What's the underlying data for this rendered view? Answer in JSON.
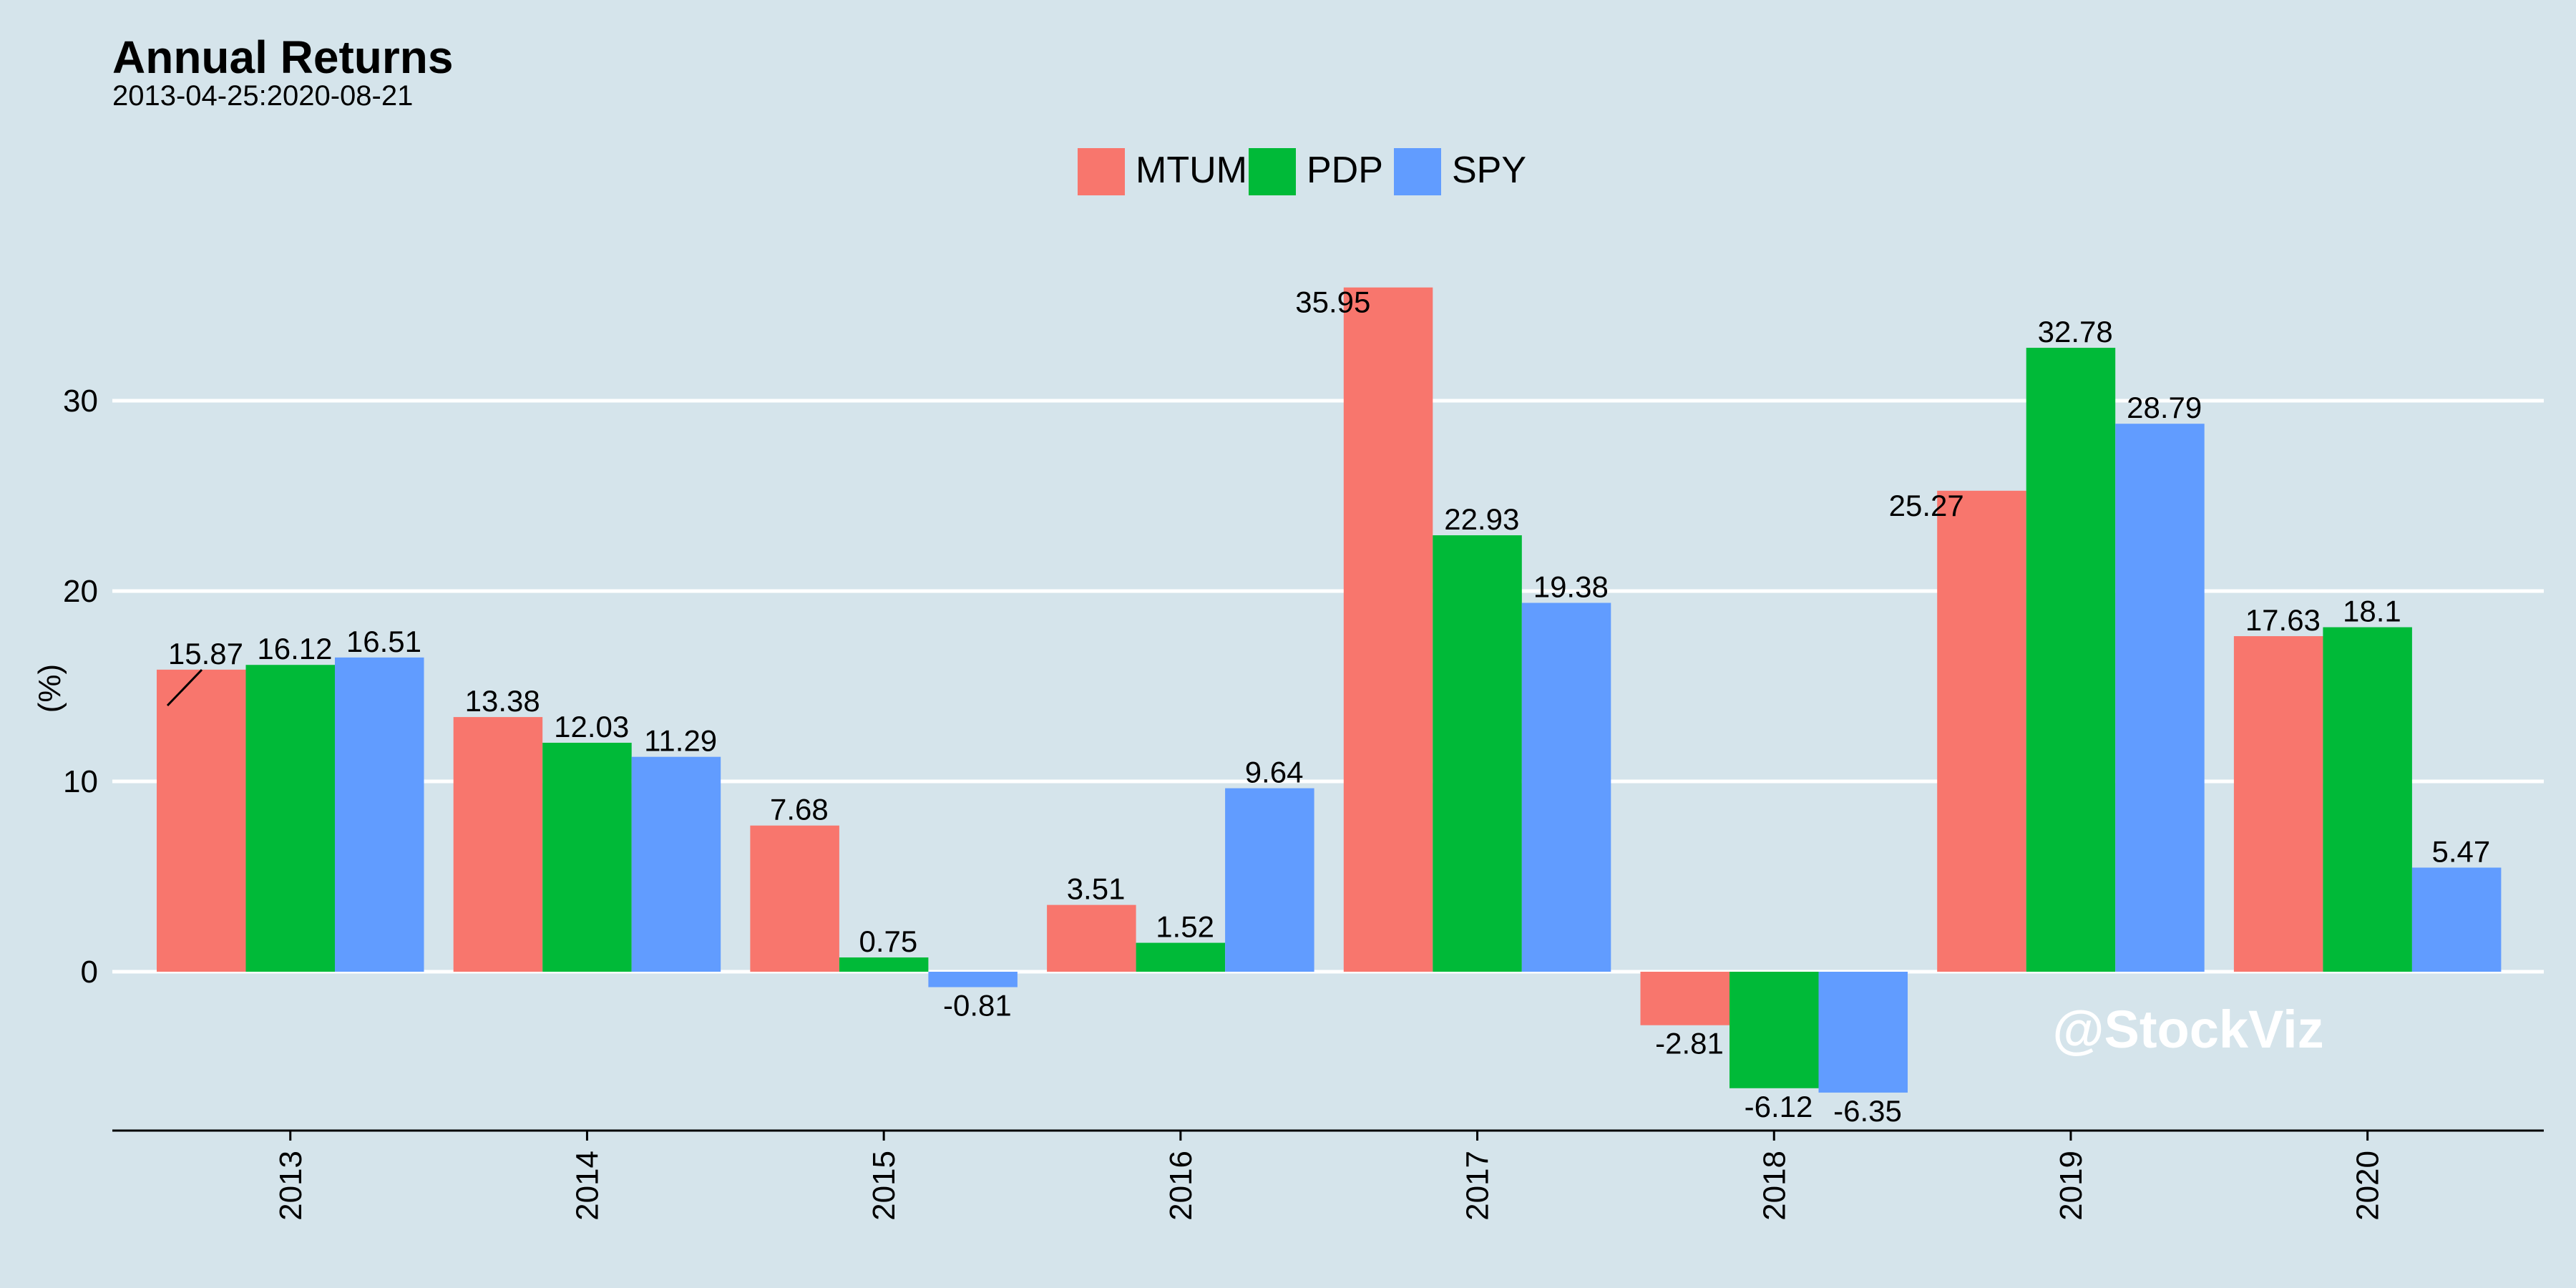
{
  "chart_data": {
    "type": "bar",
    "title": "Annual Returns",
    "subtitle": "2013-04-25:2020-08-21",
    "xlabel": "",
    "ylabel": "(%)",
    "ylim": [
      -8.5,
      38
    ],
    "yticks": [
      0,
      10,
      20,
      30
    ],
    "grid": true,
    "legend_position": "top",
    "categories": [
      "2013",
      "2014",
      "2015",
      "2016",
      "2017",
      "2018",
      "2019",
      "2020"
    ],
    "series": [
      {
        "name": "MTUM",
        "color": "#f8766d",
        "values": [
          15.87,
          13.38,
          7.68,
          3.51,
          35.95,
          -2.81,
          25.27,
          17.63
        ]
      },
      {
        "name": "PDP",
        "color": "#00ba38",
        "values": [
          16.12,
          12.03,
          0.75,
          1.52,
          22.93,
          -6.12,
          32.78,
          18.1
        ]
      },
      {
        "name": "SPY",
        "color": "#619cff",
        "values": [
          16.51,
          11.29,
          -0.81,
          9.64,
          19.38,
          -6.35,
          28.79,
          5.47
        ]
      }
    ],
    "data_labels": [
      [
        "15.87",
        "16.12",
        "16.51"
      ],
      [
        "13.38",
        "12.03",
        "11.29"
      ],
      [
        "7.68",
        "0.75",
        "-0.81"
      ],
      [
        "3.51",
        "1.52",
        "9.64"
      ],
      [
        "35.95",
        "22.93",
        "19.38"
      ],
      [
        "-2.81",
        "-6.12",
        "-6.35"
      ],
      [
        "25.27",
        "32.78",
        "28.79"
      ],
      [
        "17.63",
        "18.1",
        "5.47"
      ]
    ]
  },
  "watermark": "@StockViz"
}
